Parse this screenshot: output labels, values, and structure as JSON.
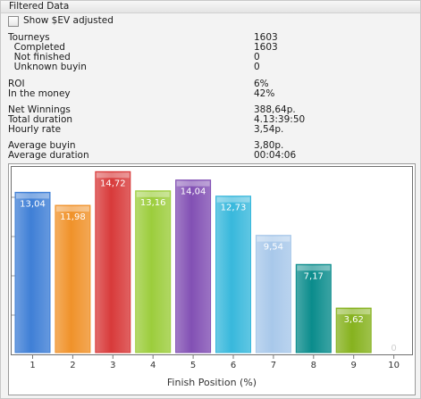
{
  "panel": {
    "title": "Filtered Data",
    "show_sev_label": "Show $EV adjusted",
    "show_sev_checked": false
  },
  "stats": [
    {
      "label": "Tourneys",
      "value": "1603"
    },
    {
      "label": "  Completed",
      "value": "1603"
    },
    {
      "label": "  Not finished",
      "value": "0"
    },
    {
      "label": "  Unknown buyin",
      "value": "0"
    },
    {
      "label": "ROI",
      "value": "6%"
    },
    {
      "label": "In the money",
      "value": "42%"
    },
    {
      "label": "Net Winnings",
      "value": "388,64p."
    },
    {
      "label": "Total duration",
      "value": "4.13:39:50"
    },
    {
      "label": "Hourly rate",
      "value": "3,54p."
    },
    {
      "label": "Average buyin",
      "value": "3,80p."
    },
    {
      "label": "Average duration",
      "value": "00:04:06"
    }
  ],
  "chart_data": {
    "type": "bar",
    "categories": [
      "1",
      "2",
      "3",
      "4",
      "5",
      "6",
      "7",
      "8",
      "9",
      "10"
    ],
    "values": [
      13.04,
      11.98,
      14.72,
      13.16,
      14.04,
      12.73,
      9.54,
      7.17,
      3.62,
      0
    ],
    "value_labels": [
      "13,04",
      "11,98",
      "14,72",
      "13,16",
      "14,04",
      "12,73",
      "9,54",
      "7,17",
      "3,62",
      "0"
    ],
    "xlabel": "Finish Position (%)",
    "ylabel": "",
    "ylim": [
      0,
      16
    ],
    "grid": false,
    "bar_colors": [
      "#3f7fd6",
      "#f0922a",
      "#d83a3a",
      "#9ccd3c",
      "#8250b4",
      "#38b8dc",
      "#a8c8ea",
      "#0a8c8c",
      "#86b21e",
      "#c8c8c8"
    ]
  }
}
